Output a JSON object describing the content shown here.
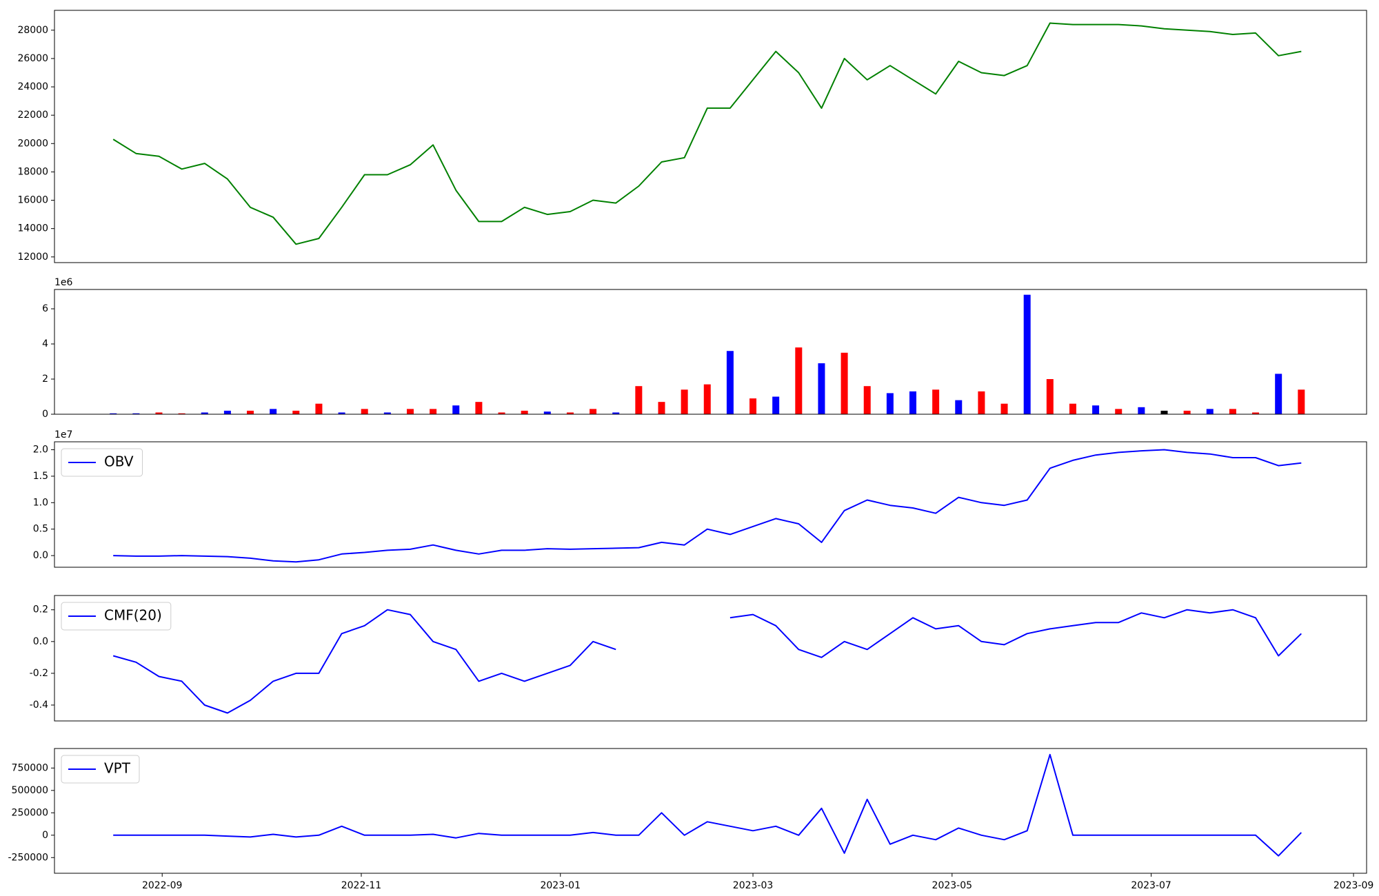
{
  "chart_data": [
    {
      "type": "line",
      "color": "#008000",
      "x": [
        "2022-08-17",
        "2022-08-24",
        "2022-08-31",
        "2022-09-07",
        "2022-09-14",
        "2022-09-21",
        "2022-09-28",
        "2022-10-05",
        "2022-10-12",
        "2022-10-19",
        "2022-10-26",
        "2022-11-02",
        "2022-11-09",
        "2022-11-16",
        "2022-11-23",
        "2022-11-30",
        "2022-12-07",
        "2022-12-14",
        "2022-12-21",
        "2022-12-28",
        "2023-01-04",
        "2023-01-11",
        "2023-01-18",
        "2023-01-25",
        "2023-02-01",
        "2023-02-08",
        "2023-02-15",
        "2023-02-22",
        "2023-03-01",
        "2023-03-08",
        "2023-03-15",
        "2023-03-22",
        "2023-03-29",
        "2023-04-05",
        "2023-04-12",
        "2023-04-19",
        "2023-04-26",
        "2023-05-03",
        "2023-05-10",
        "2023-05-17",
        "2023-05-24",
        "2023-05-31",
        "2023-06-07",
        "2023-06-14",
        "2023-06-21",
        "2023-06-28",
        "2023-07-05",
        "2023-07-12",
        "2023-07-19",
        "2023-07-26",
        "2023-08-02",
        "2023-08-09",
        "2023-08-16"
      ],
      "values": [
        20300,
        19300,
        19100,
        18200,
        18600,
        17500,
        15500,
        14800,
        12900,
        13300,
        15500,
        17800,
        17800,
        18500,
        19900,
        16700,
        14500,
        14500,
        15500,
        15000,
        15200,
        16000,
        15800,
        17000,
        18700,
        19000,
        22500,
        22500,
        24500,
        26500,
        25000,
        22500,
        26000,
        24500,
        25500,
        24500,
        23500,
        25800,
        25000,
        24800,
        25500,
        28500,
        28400,
        28400,
        28400,
        28300,
        28100,
        28000,
        27900,
        27700,
        27800,
        26200,
        26500
      ],
      "xlim": [
        "2022-07-30",
        "2023-09-05"
      ],
      "ylim": [
        11600,
        29400
      ],
      "yticks": [
        12000,
        14000,
        16000,
        18000,
        20000,
        22000,
        24000,
        26000,
        28000
      ]
    },
    {
      "type": "bar",
      "y_offset_label": "1e6",
      "x": [
        "2022-08-17",
        "2022-08-24",
        "2022-08-31",
        "2022-09-07",
        "2022-09-14",
        "2022-09-21",
        "2022-09-28",
        "2022-10-05",
        "2022-10-12",
        "2022-10-19",
        "2022-10-26",
        "2022-11-02",
        "2022-11-09",
        "2022-11-16",
        "2022-11-23",
        "2022-11-30",
        "2022-12-07",
        "2022-12-14",
        "2022-12-21",
        "2022-12-28",
        "2023-01-04",
        "2023-01-11",
        "2023-01-18",
        "2023-01-25",
        "2023-02-01",
        "2023-02-08",
        "2023-02-15",
        "2023-02-22",
        "2023-03-01",
        "2023-03-08",
        "2023-03-15",
        "2023-03-22",
        "2023-03-29",
        "2023-04-05",
        "2023-04-12",
        "2023-04-19",
        "2023-04-26",
        "2023-05-03",
        "2023-05-10",
        "2023-05-17",
        "2023-05-24",
        "2023-05-31",
        "2023-06-07",
        "2023-06-14",
        "2023-06-21",
        "2023-06-28",
        "2023-07-05",
        "2023-07-12",
        "2023-07-19",
        "2023-07-26",
        "2023-08-02",
        "2023-08-09",
        "2023-08-16"
      ],
      "values": [
        0.05,
        0.05,
        0.1,
        0.05,
        0.1,
        0.2,
        0.2,
        0.3,
        0.2,
        0.6,
        0.1,
        0.3,
        0.1,
        0.3,
        0.3,
        0.5,
        0.7,
        0.1,
        0.2,
        0.15,
        0.1,
        0.3,
        0.1,
        1.6,
        0.7,
        1.4,
        1.7,
        3.6,
        0.9,
        1.0,
        3.8,
        2.9,
        3.5,
        1.6,
        1.2,
        1.3,
        1.4,
        0.8,
        1.3,
        0.6,
        6.8,
        2.0,
        0.6,
        0.5,
        0.3,
        0.4,
        0.2,
        0.2,
        0.3,
        0.3,
        0.1,
        2.3,
        1.4
      ],
      "colors": [
        "blue",
        "blue",
        "red",
        "red",
        "blue",
        "blue",
        "red",
        "blue",
        "red",
        "red",
        "blue",
        "red",
        "blue",
        "red",
        "red",
        "blue",
        "red",
        "red",
        "red",
        "blue",
        "red",
        "red",
        "blue",
        "red",
        "red",
        "red",
        "red",
        "blue",
        "red",
        "blue",
        "red",
        "blue",
        "red",
        "red",
        "blue",
        "blue",
        "red",
        "blue",
        "red",
        "red",
        "blue",
        "red",
        "red",
        "blue",
        "red",
        "blue",
        "black",
        "red",
        "blue",
        "red",
        "red",
        "blue",
        "red"
      ],
      "xlim": [
        "2022-07-30",
        "2023-09-05"
      ],
      "ylim": [
        0,
        7.1
      ],
      "yticks": [
        0,
        2,
        4,
        6
      ]
    },
    {
      "type": "line",
      "y_offset_label": "1e7",
      "legend": "upper left",
      "x": [
        "2022-08-17",
        "2022-08-24",
        "2022-08-31",
        "2022-09-07",
        "2022-09-14",
        "2022-09-21",
        "2022-09-28",
        "2022-10-05",
        "2022-10-12",
        "2022-10-19",
        "2022-10-26",
        "2022-11-02",
        "2022-11-09",
        "2022-11-16",
        "2022-11-23",
        "2022-11-30",
        "2022-12-07",
        "2022-12-14",
        "2022-12-21",
        "2022-12-28",
        "2023-01-04",
        "2023-01-11",
        "2023-01-18",
        "2023-01-25",
        "2023-02-01",
        "2023-02-08",
        "2023-02-15",
        "2023-02-22",
        "2023-03-01",
        "2023-03-08",
        "2023-03-15",
        "2023-03-22",
        "2023-03-29",
        "2023-04-05",
        "2023-04-12",
        "2023-04-19",
        "2023-04-26",
        "2023-05-03",
        "2023-05-10",
        "2023-05-17",
        "2023-05-24",
        "2023-05-31",
        "2023-06-07",
        "2023-06-14",
        "2023-06-21",
        "2023-06-28",
        "2023-07-05",
        "2023-07-12",
        "2023-07-19",
        "2023-07-26",
        "2023-08-02",
        "2023-08-09",
        "2023-08-16"
      ],
      "series": [
        {
          "name": "OBV",
          "color": "#0000ff",
          "values": [
            0.0,
            -0.01,
            -0.01,
            0.0,
            -0.01,
            -0.02,
            -0.05,
            -0.1,
            -0.12,
            -0.08,
            0.03,
            0.06,
            0.1,
            0.12,
            0.2,
            0.1,
            0.03,
            0.1,
            0.1,
            0.13,
            0.12,
            0.13,
            0.14,
            0.15,
            0.25,
            0.2,
            0.5,
            0.4,
            0.55,
            0.7,
            0.6,
            0.25,
            0.85,
            1.05,
            0.95,
            0.9,
            0.8,
            1.1,
            1.0,
            0.95,
            1.05,
            1.65,
            1.8,
            1.9,
            1.95,
            1.98,
            2.0,
            1.95,
            1.92,
            1.85,
            1.85,
            1.7,
            1.75
          ]
        }
      ],
      "xlim": [
        "2022-07-30",
        "2023-09-05"
      ],
      "ylim": [
        -0.22,
        2.15
      ],
      "yticks": [
        {
          "value": 0,
          "label": "0.0"
        },
        0.5,
        {
          "value": 1,
          "label": "1.0"
        },
        1.5,
        {
          "value": 2,
          "label": "2.0"
        }
      ]
    },
    {
      "type": "line",
      "legend": "upper left",
      "x": [
        "2022-08-17",
        "2022-08-24",
        "2022-08-31",
        "2022-09-07",
        "2022-09-14",
        "2022-09-21",
        "2022-09-28",
        "2022-10-05",
        "2022-10-12",
        "2022-10-19",
        "2022-10-26",
        "2022-11-02",
        "2022-11-09",
        "2022-11-16",
        "2022-11-23",
        "2022-11-30",
        "2022-12-07",
        "2022-12-14",
        "2022-12-21",
        "2022-12-28",
        "2023-01-04",
        "2023-01-11",
        "2023-01-18",
        "2023-01-25",
        "2023-02-01",
        "2023-02-08",
        "2023-02-15",
        "2023-02-22",
        "2023-03-01",
        "2023-03-08",
        "2023-03-15",
        "2023-03-22",
        "2023-03-29",
        "2023-04-05",
        "2023-04-12",
        "2023-04-19",
        "2023-04-26",
        "2023-05-03",
        "2023-05-10",
        "2023-05-17",
        "2023-05-24",
        "2023-05-31",
        "2023-06-07",
        "2023-06-14",
        "2023-06-21",
        "2023-06-28",
        "2023-07-05",
        "2023-07-12",
        "2023-07-19",
        "2023-07-26",
        "2023-08-02",
        "2023-08-09",
        "2023-08-16"
      ],
      "series": [
        {
          "name": "CMF(20)",
          "color": "#0000ff",
          "values": [
            -0.09,
            -0.13,
            -0.22,
            -0.25,
            -0.4,
            -0.45,
            -0.37,
            -0.25,
            -0.2,
            -0.2,
            0.05,
            0.1,
            0.2,
            0.17,
            0.0,
            -0.05,
            -0.25,
            -0.2,
            -0.25,
            -0.2,
            -0.15,
            0.0,
            -0.05,
            null,
            null,
            null,
            null,
            0.15,
            0.17,
            0.1,
            -0.05,
            -0.1,
            0.0,
            -0.05,
            0.05,
            0.15,
            0.08,
            0.1,
            0.0,
            -0.02,
            0.05,
            0.08,
            0.1,
            0.12,
            0.12,
            0.18,
            0.15,
            0.2,
            0.18,
            0.2,
            0.15,
            -0.09,
            0.05
          ]
        }
      ],
      "xlim": [
        "2022-07-30",
        "2023-09-05"
      ],
      "ylim": [
        -0.5,
        0.29
      ],
      "yticks": [
        -0.4,
        -0.2,
        {
          "value": 0,
          "label": "0.0"
        },
        0.2
      ]
    },
    {
      "type": "line",
      "legend": "upper left",
      "x": [
        "2022-08-17",
        "2022-08-24",
        "2022-08-31",
        "2022-09-07",
        "2022-09-14",
        "2022-09-21",
        "2022-09-28",
        "2022-10-05",
        "2022-10-12",
        "2022-10-19",
        "2022-10-26",
        "2022-11-02",
        "2022-11-09",
        "2022-11-16",
        "2022-11-23",
        "2022-11-30",
        "2022-12-07",
        "2022-12-14",
        "2022-12-21",
        "2022-12-28",
        "2023-01-04",
        "2023-01-11",
        "2023-01-18",
        "2023-01-25",
        "2023-02-01",
        "2023-02-08",
        "2023-02-15",
        "2023-02-22",
        "2023-03-01",
        "2023-03-08",
        "2023-03-15",
        "2023-03-22",
        "2023-03-29",
        "2023-04-05",
        "2023-04-12",
        "2023-04-19",
        "2023-04-26",
        "2023-05-03",
        "2023-05-10",
        "2023-05-17",
        "2023-05-24",
        "2023-05-31",
        "2023-06-07",
        "2023-06-14",
        "2023-06-21",
        "2023-06-28",
        "2023-07-05",
        "2023-07-12",
        "2023-07-19",
        "2023-07-26",
        "2023-08-02",
        "2023-08-09",
        "2023-08-16"
      ],
      "series": [
        {
          "name": "VPT",
          "color": "#0000ff",
          "values": [
            0,
            0,
            0,
            0,
            0,
            -10000,
            -20000,
            10000,
            -20000,
            0,
            100000,
            0,
            0,
            0,
            10000,
            -30000,
            20000,
            0,
            0,
            0,
            0,
            30000,
            0,
            0,
            250000,
            0,
            150000,
            100000,
            50000,
            100000,
            0,
            300000,
            -200000,
            400000,
            -100000,
            0,
            -50000,
            80000,
            0,
            -50000,
            50000,
            900000,
            0,
            0,
            0,
            0,
            0,
            0,
            0,
            0,
            0,
            -230000,
            30000
          ]
        }
      ],
      "xlim": [
        "2022-07-30",
        "2023-09-05"
      ],
      "ylim": [
        -425000,
        968000
      ],
      "yticks": [
        -250000,
        0,
        250000,
        500000,
        750000
      ],
      "xticks": [
        {
          "value": "2022-09-01",
          "label": "2022-09"
        },
        {
          "value": "2022-11-01",
          "label": "2022-11"
        },
        {
          "value": "2023-01-01",
          "label": "2023-01"
        },
        {
          "value": "2023-03-01",
          "label": "2023-03"
        },
        {
          "value": "2023-05-01",
          "label": "2023-05"
        },
        {
          "value": "2023-07-01",
          "label": "2023-07"
        },
        {
          "value": "2023-09-01",
          "label": "2023-09"
        }
      ]
    }
  ]
}
